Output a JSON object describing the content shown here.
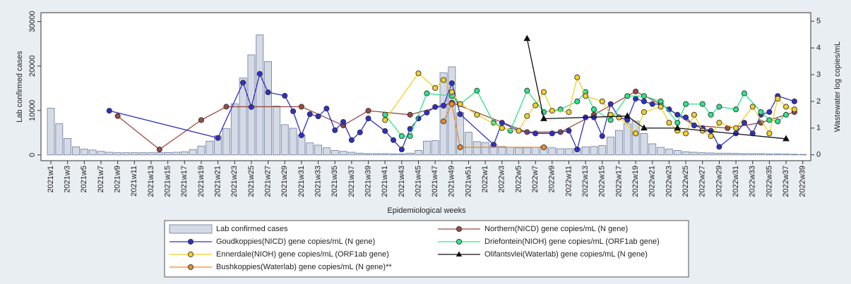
{
  "chart_data": {
    "type": "combo",
    "x_label": "Epidemiological weeks",
    "y_label": "Lab confirmed cases",
    "y2_label": "Wastewater log copies/mL",
    "categories": [
      "2021w1",
      null,
      "2021w3",
      null,
      "2021w5",
      null,
      "2021w7",
      null,
      "2021w9",
      null,
      "2021w11",
      null,
      "2021w13",
      null,
      "2021w15",
      null,
      "2021w17",
      null,
      "2021w19",
      null,
      "2021w21",
      null,
      "2021w23",
      null,
      "2021w25",
      null,
      "2021w27",
      null,
      "2021w29",
      null,
      "2021w31",
      null,
      "2021w33",
      null,
      "2021w35",
      null,
      "2021w37",
      null,
      "2021w39",
      null,
      "2021w41",
      null,
      "2021w43",
      null,
      "2021w45",
      null,
      "2021w47",
      null,
      "2021w49",
      null,
      "2021w51",
      null,
      "2022w1",
      null,
      "2022w3",
      null,
      "2022w5",
      null,
      "2022w7",
      null,
      "2022w9",
      null,
      "2022w11",
      null,
      "2022w13",
      null,
      "2022w15",
      null,
      "2022w17",
      null,
      "2022w19",
      null,
      "2022w21",
      null,
      "2022w23",
      null,
      "2022w25",
      null,
      "2022w27",
      null,
      "2022w29",
      null,
      "2022w31",
      null,
      "2022w33",
      null,
      "2022w35",
      null,
      "2022w37",
      null,
      "2022w39"
    ],
    "ylim": [
      -1300,
      32000
    ],
    "yticks": [
      0,
      10000,
      20000,
      30000
    ],
    "y2lim": [
      -0.22,
      5.32
    ],
    "y2ticks": [
      0,
      1,
      2,
      3,
      4,
      5
    ],
    "grid": false,
    "bars": {
      "name": "Lab confirmed cases",
      "color": "#d5dbe6",
      "values": [
        10500,
        7000,
        3700,
        1800,
        1300,
        1100,
        800,
        600,
        500,
        500,
        500,
        500,
        500,
        500,
        550,
        600,
        700,
        1200,
        2000,
        3100,
        4300,
        5900,
        11500,
        17300,
        22500,
        27000,
        21000,
        11000,
        6800,
        6000,
        4500,
        2700,
        2200,
        1600,
        1000,
        800,
        600,
        400,
        300,
        300,
        300,
        250,
        250,
        400,
        1000,
        3100,
        3200,
        18500,
        19800,
        9500,
        5100,
        3000,
        2800,
        2200,
        1900,
        1700,
        1600,
        1600,
        1700,
        1900,
        1600,
        1400,
        1400,
        1500,
        1800,
        1900,
        2100,
        4000,
        5500,
        7000,
        7600,
        4800,
        2500,
        1700,
        1300,
        1000,
        700,
        600,
        500,
        450,
        400,
        400,
        350,
        300,
        300,
        300,
        250,
        250,
        200,
        150,
        100
      ]
    },
    "series": [
      {
        "name": "Northern(NICD) gene copies/mL (N gene)",
        "color": "#9b4a44",
        "marker": "circle",
        "axis": "y2",
        "values": [
          null,
          null,
          null,
          null,
          null,
          null,
          null,
          null,
          1.45,
          null,
          null,
          null,
          null,
          0.2,
          null,
          null,
          null,
          null,
          1.3,
          null,
          null,
          1.8,
          null,
          null,
          null,
          null,
          null,
          null,
          null,
          null,
          1.8,
          null,
          null,
          null,
          null,
          1.1,
          null,
          null,
          1.65,
          null,
          null,
          null,
          null,
          1.5,
          null,
          null,
          null,
          1.84,
          1.95,
          null,
          null,
          null,
          null,
          null,
          null,
          null,
          null,
          0.85,
          null,
          null,
          null,
          0.85,
          null,
          null,
          null,
          1.5,
          null,
          null,
          null,
          null,
          2.37,
          null,
          null,
          1.9,
          null,
          null,
          null,
          1.1,
          null,
          null,
          null,
          1.0,
          null,
          null,
          null,
          1.2,
          null,
          null,
          null,
          1.6,
          null
        ]
      },
      {
        "name": "Goudkoppies(NICD) gene copies/mL (N gene)",
        "color": "#2f2fc4",
        "marker": "circle",
        "axis": "y2",
        "values": [
          null,
          null,
          null,
          null,
          null,
          null,
          null,
          1.65,
          null,
          null,
          null,
          null,
          null,
          null,
          null,
          null,
          null,
          null,
          null,
          null,
          0.63,
          null,
          null,
          2.7,
          1.79,
          3.03,
          2.34,
          null,
          2.21,
          1.63,
          0.73,
          1.52,
          1.44,
          1.73,
          0.92,
          1.23,
          0.55,
          0.84,
          1.36,
          null,
          0.89,
          0.55,
          0.2,
          0.97,
          1.36,
          1.58,
          1.79,
          1.84,
          2.68,
          1.52,
          null,
          null,
          null,
          0.38,
          1.2,
          null,
          0.9,
          null,
          0.8,
          null,
          0.8,
          null,
          0.9,
          0.2,
          1.4,
          1.4,
          0.7,
          1.9,
          1.4,
          1.3,
          2.1,
          2.0,
          1.9,
          1.9,
          1.7,
          1.5,
          1.4,
          1.1,
          1.0,
          0.9,
          0.3,
          null,
          0.8,
          1.2,
          0.8,
          1.5,
          1.6,
          2.2,
          null,
          2.0,
          null
        ]
      },
      {
        "name": "Driefontein(NIOH) gene copies/mL (ORF1ab gene)",
        "color": "#2fe38c",
        "marker": "circle",
        "axis": "y2",
        "values": [
          null,
          null,
          null,
          null,
          null,
          null,
          null,
          null,
          null,
          null,
          null,
          null,
          null,
          null,
          null,
          null,
          null,
          null,
          null,
          null,
          null,
          null,
          null,
          null,
          null,
          null,
          null,
          null,
          null,
          null,
          null,
          null,
          null,
          null,
          null,
          null,
          null,
          null,
          null,
          null,
          1.5,
          null,
          0.7,
          0.7,
          null,
          2.3,
          null,
          null,
          2.2,
          1.9,
          null,
          2.4,
          null,
          1.2,
          null,
          0.9,
          null,
          2.4,
          null,
          1.6,
          null,
          1.7,
          null,
          2.0,
          2.35,
          1.7,
          null,
          1.3,
          null,
          2.2,
          null,
          2.2,
          null,
          2.0,
          null,
          1.2,
          1.9,
          null,
          1.9,
          1.5,
          1.8,
          null,
          1.7,
          2.3,
          null,
          1.6,
          1.3,
          1.25,
          1.5,
          null,
          null
        ]
      },
      {
        "name": "Ennerdale(NIOH) gene copies/mL (ORF1ab gene)",
        "color": "#f2cf2a",
        "marker": "circle",
        "axis": "y2",
        "values": [
          null,
          null,
          null,
          null,
          null,
          null,
          null,
          null,
          null,
          null,
          null,
          null,
          null,
          null,
          null,
          null,
          null,
          null,
          null,
          null,
          null,
          null,
          null,
          null,
          null,
          null,
          null,
          null,
          null,
          null,
          null,
          null,
          null,
          null,
          null,
          null,
          null,
          null,
          null,
          null,
          1.3,
          null,
          null,
          null,
          3.05,
          null,
          2.5,
          2.8,
          2.35,
          1.9,
          null,
          1.5,
          null,
          null,
          1.0,
          null,
          0.9,
          1.45,
          1.85,
          2.35,
          1.65,
          null,
          1.6,
          2.9,
          2.2,
          null,
          2.0,
          1.5,
          1.4,
          null,
          0.8,
          1.6,
          null,
          1.8,
          1.2,
          0.9,
          0.8,
          1.5,
          0.9,
          0.7,
          1.2,
          null,
          1.0,
          null,
          1.8,
          null,
          0.8,
          2.1,
          1.8,
          1.7,
          null
        ]
      },
      {
        "name": "Olifantsvlei(Waterlab) gene copies/mL (N gene)",
        "color": "#111111",
        "marker": "triangle",
        "axis": "y2",
        "values": [
          null,
          null,
          null,
          null,
          null,
          null,
          null,
          null,
          null,
          null,
          null,
          null,
          null,
          null,
          null,
          null,
          null,
          null,
          null,
          null,
          null,
          null,
          null,
          null,
          null,
          null,
          null,
          null,
          null,
          null,
          null,
          null,
          null,
          null,
          null,
          null,
          null,
          null,
          null,
          null,
          null,
          null,
          null,
          null,
          null,
          null,
          null,
          null,
          null,
          null,
          null,
          null,
          null,
          null,
          null,
          null,
          null,
          4.35,
          null,
          1.35,
          null,
          null,
          null,
          null,
          null,
          null,
          null,
          null,
          null,
          1.45,
          null,
          1.0,
          null,
          null,
          null,
          1.0,
          null,
          null,
          null,
          null,
          null,
          null,
          null,
          null,
          null,
          null,
          null,
          null,
          0.6,
          null,
          null
        ]
      },
      {
        "name": "Bushkoppies(Waterlab) gene copies/mL (N gene)**",
        "color": "#ec8a2c",
        "marker": "circle",
        "axis": "y2",
        "values": [
          null,
          null,
          null,
          null,
          null,
          null,
          null,
          null,
          null,
          null,
          null,
          null,
          null,
          null,
          null,
          null,
          null,
          null,
          null,
          null,
          null,
          null,
          null,
          null,
          null,
          null,
          null,
          null,
          null,
          null,
          null,
          null,
          null,
          null,
          null,
          null,
          null,
          null,
          null,
          null,
          null,
          null,
          null,
          null,
          null,
          null,
          null,
          1.25,
          1.9,
          0.28,
          null,
          null,
          null,
          null,
          null,
          null,
          null,
          null,
          null,
          0.28,
          null,
          null,
          null,
          null,
          null,
          null,
          null,
          null,
          null,
          null,
          null,
          null,
          null,
          null,
          null,
          null,
          null,
          null,
          null,
          null,
          null,
          null,
          null,
          null,
          null,
          null,
          null,
          null,
          null,
          null,
          null
        ]
      }
    ]
  }
}
